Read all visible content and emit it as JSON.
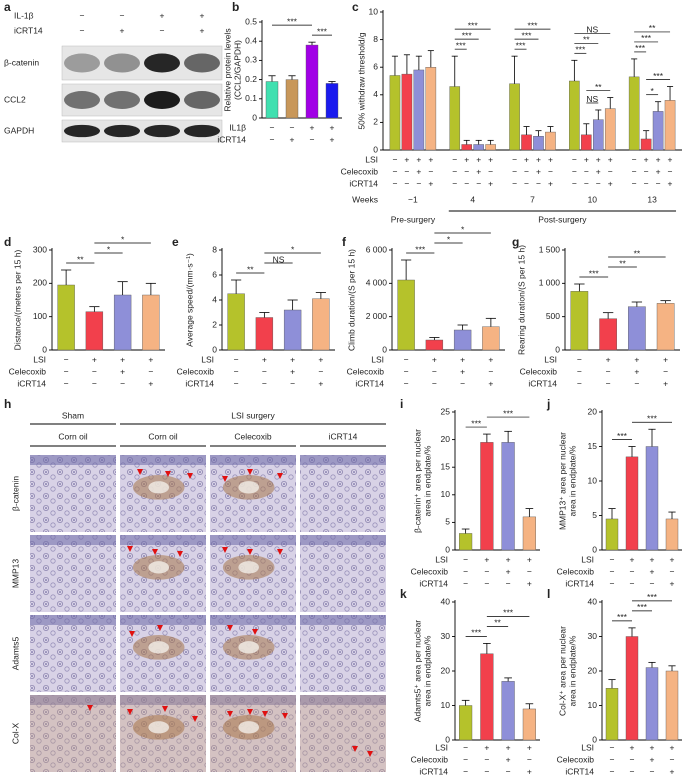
{
  "blot": {
    "panel": "a",
    "conditions": [
      {
        "name": "IL-1β",
        "marks": [
          "−",
          "−",
          "+",
          "+"
        ]
      },
      {
        "name": "iCRT14",
        "marks": [
          "−",
          "+",
          "−",
          "+"
        ]
      }
    ],
    "bands": [
      "β-catenin",
      "CCL2",
      "GAPDH"
    ]
  },
  "histology": {
    "panel": "h",
    "groups": [
      "Sham",
      "LSI surgery"
    ],
    "columns": [
      "Corn oil",
      "Corn oil",
      "Celecoxib",
      "iCRT14"
    ],
    "rows": [
      "β-catenin",
      "MMP13",
      "Adamts5",
      "Col-X"
    ]
  },
  "chart_data": [
    {
      "type": "bar",
      "panel": "b",
      "ylabel": [
        "Relative protein levels",
        "(CCL2/GAPDH)"
      ],
      "values": [
        0.19,
        0.2,
        0.38,
        0.18
      ],
      "errors": [
        0.03,
        0.02,
        0.015,
        0.01
      ],
      "colors": [
        "#40e0b0",
        "#c8975a",
        "#a100e6",
        "#1a1aee"
      ],
      "ylim": [
        0,
        0.5
      ],
      "yticks": [
        0,
        0.1,
        0.2,
        0.3,
        0.4,
        0.5
      ],
      "conditions": [
        {
          "name": "IL1β",
          "marks": [
            "−",
            "−",
            "+",
            "+"
          ]
        },
        {
          "name": "iCRT14",
          "marks": [
            "−",
            "+",
            "−",
            "+"
          ]
        }
      ],
      "annotations": [
        {
          "pair": [
            2,
            3
          ],
          "label": "***"
        },
        {
          "pair": [
            0,
            2
          ],
          "label": "***"
        }
      ]
    },
    {
      "type": "bar",
      "panel": "c",
      "ylabel": "50% withdraw threshold/g",
      "categories": [
        "−1",
        "4",
        "7",
        "10",
        "13"
      ],
      "series": [
        {
          "color": "#b5c22b",
          "values": [
            5.4,
            4.6,
            4.8,
            5.0,
            5.3
          ],
          "errors": [
            1.4,
            2.2,
            2.0,
            1.5,
            1.3
          ]
        },
        {
          "color": "#f2404c",
          "values": [
            5.5,
            0.4,
            1.1,
            1.1,
            0.8
          ],
          "errors": [
            1.4,
            0.3,
            0.6,
            0.8,
            0.6
          ]
        },
        {
          "color": "#8e8fd8",
          "values": [
            5.8,
            0.4,
            1.0,
            2.2,
            2.8
          ],
          "errors": [
            1.0,
            0.3,
            0.4,
            0.7,
            0.7
          ]
        },
        {
          "color": "#f5b383",
          "values": [
            6.0,
            0.4,
            1.3,
            3.0,
            3.6
          ],
          "errors": [
            1.2,
            0.3,
            0.4,
            0.8,
            1.0
          ]
        }
      ],
      "ylim": [
        0,
        10
      ],
      "yticks": [
        0,
        2,
        4,
        6,
        8,
        10
      ],
      "conditions": [
        {
          "name": "LSI",
          "marks": [
            "−",
            "+",
            "+",
            "+",
            "−",
            "+",
            "+",
            "+",
            "−",
            "+",
            "+",
            "+",
            "−",
            "+",
            "+",
            "+",
            "−",
            "+",
            "+",
            "+"
          ]
        },
        {
          "name": "Celecoxib",
          "marks": [
            "−",
            "−",
            "+",
            "−",
            "−",
            "−",
            "+",
            "−",
            "−",
            "−",
            "+",
            "−",
            "−",
            "−",
            "+",
            "−",
            "−",
            "−",
            "+",
            "−"
          ]
        },
        {
          "name": "iCRT14",
          "marks": [
            "−",
            "−",
            "−",
            "+",
            "−",
            "−",
            "−",
            "+",
            "−",
            "−",
            "−",
            "+",
            "−",
            "−",
            "−",
            "+",
            "−",
            "−",
            "−",
            "+"
          ]
        }
      ],
      "weeks_label": "Weeks",
      "periods": [
        "Pre-surgery",
        "Post-surgery"
      ],
      "annotations": [
        {
          "category": 1,
          "pair": [
            0,
            1
          ],
          "label": "***"
        },
        {
          "category": 1,
          "pair": [
            0,
            2
          ],
          "label": "***"
        },
        {
          "category": 1,
          "pair": [
            0,
            3
          ],
          "label": "***"
        },
        {
          "category": 2,
          "pair": [
            0,
            1
          ],
          "label": "***"
        },
        {
          "category": 2,
          "pair": [
            0,
            2
          ],
          "label": "***"
        },
        {
          "category": 2,
          "pair": [
            0,
            3
          ],
          "label": "***"
        },
        {
          "category": 3,
          "pair": [
            1,
            2
          ],
          "label": "NS"
        },
        {
          "category": 3,
          "pair": [
            1,
            3
          ],
          "label": "**"
        },
        {
          "category": 3,
          "pair": [
            0,
            1
          ],
          "label": "***"
        },
        {
          "category": 3,
          "pair": [
            0,
            2
          ],
          "label": "**"
        },
        {
          "category": 3,
          "pair": [
            0,
            3
          ],
          "label": "NS"
        },
        {
          "category": 4,
          "pair": [
            1,
            2
          ],
          "label": "*"
        },
        {
          "category": 4,
          "pair": [
            1,
            3
          ],
          "label": "***"
        },
        {
          "category": 4,
          "pair": [
            0,
            1
          ],
          "label": "***"
        },
        {
          "category": 4,
          "pair": [
            0,
            2
          ],
          "label": "***"
        },
        {
          "category": 4,
          "pair": [
            0,
            3
          ],
          "label": "**"
        }
      ]
    },
    {
      "type": "bar",
      "panel": "d",
      "ylabel": "Distance/(meters per 15 h)",
      "values": [
        195,
        115,
        165,
        165
      ],
      "errors": [
        45,
        15,
        40,
        35
      ],
      "colors": [
        "#b5c22b",
        "#f2404c",
        "#8e8fd8",
        "#f5b383"
      ],
      "ylim": [
        0,
        300
      ],
      "yticks": [
        0,
        100,
        200,
        300
      ],
      "conditions": [
        {
          "name": "LSI",
          "marks": [
            "−",
            "+",
            "+",
            "+"
          ]
        },
        {
          "name": "Celecoxib",
          "marks": [
            "−",
            "−",
            "+",
            "−"
          ]
        },
        {
          "name": "iCRT14",
          "marks": [
            "−",
            "−",
            "−",
            "+"
          ]
        }
      ],
      "annotations": [
        {
          "pair": [
            0,
            1
          ],
          "label": "**"
        },
        {
          "pair": [
            1,
            2
          ],
          "label": "*"
        },
        {
          "pair": [
            1,
            3
          ],
          "label": "*"
        }
      ]
    },
    {
      "type": "bar",
      "panel": "e",
      "ylabel": "Average speed/(mm·s⁻¹)",
      "values": [
        4.5,
        2.6,
        3.2,
        4.1
      ],
      "errors": [
        1.1,
        0.4,
        0.8,
        0.5
      ],
      "colors": [
        "#b5c22b",
        "#f2404c",
        "#8e8fd8",
        "#f5b383"
      ],
      "ylim": [
        0,
        8
      ],
      "yticks": [
        0,
        2,
        4,
        6,
        8
      ],
      "conditions": [
        {
          "name": "LSI",
          "marks": [
            "−",
            "+",
            "+",
            "+"
          ]
        },
        {
          "name": "Celecoxib",
          "marks": [
            "−",
            "−",
            "+",
            "−"
          ]
        },
        {
          "name": "iCRT14",
          "marks": [
            "−",
            "−",
            "−",
            "+"
          ]
        }
      ],
      "annotations": [
        {
          "pair": [
            0,
            1
          ],
          "label": "**"
        },
        {
          "pair": [
            1,
            2
          ],
          "label": "NS"
        },
        {
          "pair": [
            1,
            3
          ],
          "label": "*"
        }
      ]
    },
    {
      "type": "bar",
      "panel": "f",
      "ylabel": "Climb duration/(S per 15 h)",
      "values": [
        4200,
        600,
        1200,
        1400
      ],
      "errors": [
        1200,
        150,
        300,
        500
      ],
      "colors": [
        "#b5c22b",
        "#f2404c",
        "#8e8fd8",
        "#f5b383"
      ],
      "ylim": [
        0,
        6000
      ],
      "yticks": [
        0,
        {
          "value": 2000,
          "label": "2 000"
        },
        {
          "value": 4000,
          "label": "4 000"
        },
        {
          "value": 6000,
          "label": "6 000"
        }
      ],
      "conditions": [
        {
          "name": "LSI",
          "marks": [
            "−",
            "+",
            "+",
            "+"
          ]
        },
        {
          "name": "Celecoxib",
          "marks": [
            "−",
            "−",
            "+",
            "−"
          ]
        },
        {
          "name": "iCRT14",
          "marks": [
            "−",
            "−",
            "−",
            "+"
          ]
        }
      ],
      "annotations": [
        {
          "pair": [
            0,
            1
          ],
          "label": "***"
        },
        {
          "pair": [
            1,
            2
          ],
          "label": "*"
        },
        {
          "pair": [
            1,
            3
          ],
          "label": "*"
        }
      ]
    },
    {
      "type": "bar",
      "panel": "g",
      "ylabel": "Rearing duration/(S per 15 h)",
      "values": [
        880,
        470,
        650,
        700
      ],
      "errors": [
        110,
        90,
        70,
        40
      ],
      "colors": [
        "#b5c22b",
        "#f2404c",
        "#8e8fd8",
        "#f5b383"
      ],
      "ylim": [
        0,
        1500
      ],
      "yticks": [
        0,
        500,
        {
          "value": 1000,
          "label": "1 000"
        },
        {
          "value": 1500,
          "label": "1 500"
        }
      ],
      "conditions": [
        {
          "name": "LSI",
          "marks": [
            "−",
            "+",
            "+",
            "+"
          ]
        },
        {
          "name": "Celecoxib",
          "marks": [
            "−",
            "−",
            "+",
            "−"
          ]
        },
        {
          "name": "iCRT14",
          "marks": [
            "−",
            "−",
            "−",
            "+"
          ]
        }
      ],
      "annotations": [
        {
          "pair": [
            0,
            1
          ],
          "label": "***"
        },
        {
          "pair": [
            1,
            2
          ],
          "label": "**"
        },
        {
          "pair": [
            1,
            3
          ],
          "label": "**"
        }
      ]
    },
    {
      "type": "bar",
      "panel": "i",
      "ylabel": [
        "β-catenin⁺ area per nuclear",
        "area in endplate/%"
      ],
      "values": [
        3,
        19.5,
        19.5,
        6
      ],
      "errors": [
        0.8,
        1.5,
        2,
        1.5
      ],
      "colors": [
        "#b5c22b",
        "#f2404c",
        "#8e8fd8",
        "#f5b383"
      ],
      "ylim": [
        0,
        25
      ],
      "yticks": [
        0,
        5,
        10,
        15,
        20,
        25
      ],
      "conditions": [
        {
          "name": "LSI",
          "marks": [
            "−",
            "+",
            "+",
            "+"
          ]
        },
        {
          "name": "Celecoxib",
          "marks": [
            "−",
            "−",
            "+",
            "−"
          ]
        },
        {
          "name": "iCRT14",
          "marks": [
            "−",
            "−",
            "−",
            "+"
          ]
        }
      ],
      "annotations": [
        {
          "pair": [
            0,
            1
          ],
          "label": "***"
        },
        {
          "pair": [
            1,
            3
          ],
          "label": "***"
        }
      ]
    },
    {
      "type": "bar",
      "panel": "j",
      "ylabel": [
        "MMP13⁺ area per nuclear",
        "area in endplate/%"
      ],
      "values": [
        4.5,
        13.5,
        15,
        4.5
      ],
      "errors": [
        1.5,
        1.5,
        2.5,
        1
      ],
      "colors": [
        "#b5c22b",
        "#f2404c",
        "#8e8fd8",
        "#f5b383"
      ],
      "ylim": [
        0,
        20
      ],
      "yticks": [
        0,
        5,
        10,
        15,
        20
      ],
      "conditions": [
        {
          "name": "LSI",
          "marks": [
            "−",
            "+",
            "+",
            "+"
          ]
        },
        {
          "name": "Celecoxib",
          "marks": [
            "−",
            "−",
            "+",
            "−"
          ]
        },
        {
          "name": "iCRT14",
          "marks": [
            "−",
            "−",
            "−",
            "+"
          ]
        }
      ],
      "annotations": [
        {
          "pair": [
            0,
            1
          ],
          "label": "***"
        },
        {
          "pair": [
            1,
            3
          ],
          "label": "***"
        }
      ]
    },
    {
      "type": "bar",
      "panel": "k",
      "ylabel": [
        "Adamts5⁺ area per nuclear",
        "area in endplate/%"
      ],
      "values": [
        10,
        25,
        17,
        9
      ],
      "errors": [
        1.5,
        3,
        1,
        1.5
      ],
      "colors": [
        "#b5c22b",
        "#f2404c",
        "#8e8fd8",
        "#f5b383"
      ],
      "ylim": [
        0,
        40
      ],
      "yticks": [
        0,
        10,
        20,
        30,
        40
      ],
      "conditions": [
        {
          "name": "LSI",
          "marks": [
            "−",
            "+",
            "+",
            "+"
          ]
        },
        {
          "name": "Celecoxib",
          "marks": [
            "−",
            "−",
            "+",
            "−"
          ]
        },
        {
          "name": "iCRT14",
          "marks": [
            "−",
            "−",
            "−",
            "+"
          ]
        }
      ],
      "annotations": [
        {
          "pair": [
            0,
            1
          ],
          "label": "***"
        },
        {
          "pair": [
            1,
            2
          ],
          "label": "**"
        },
        {
          "pair": [
            1,
            3
          ],
          "label": "***"
        }
      ]
    },
    {
      "type": "bar",
      "panel": "l",
      "ylabel": [
        "Col-X⁺ area per nuclear",
        "area in endplate/%"
      ],
      "values": [
        15,
        30,
        21,
        20
      ],
      "errors": [
        2.5,
        2.5,
        1.5,
        1.5
      ],
      "colors": [
        "#b5c22b",
        "#f2404c",
        "#8e8fd8",
        "#f5b383"
      ],
      "ylim": [
        0,
        40
      ],
      "yticks": [
        0,
        10,
        20,
        30,
        40
      ],
      "conditions": [
        {
          "name": "LSI",
          "marks": [
            "−",
            "+",
            "+",
            "+"
          ]
        },
        {
          "name": "Celecoxib",
          "marks": [
            "−",
            "−",
            "+",
            "−"
          ]
        },
        {
          "name": "iCRT14",
          "marks": [
            "−",
            "−",
            "−",
            "+"
          ]
        }
      ],
      "annotations": [
        {
          "pair": [
            0,
            1
          ],
          "label": "***"
        },
        {
          "pair": [
            1,
            2
          ],
          "label": "***"
        },
        {
          "pair": [
            1,
            3
          ],
          "label": "***"
        }
      ]
    }
  ]
}
